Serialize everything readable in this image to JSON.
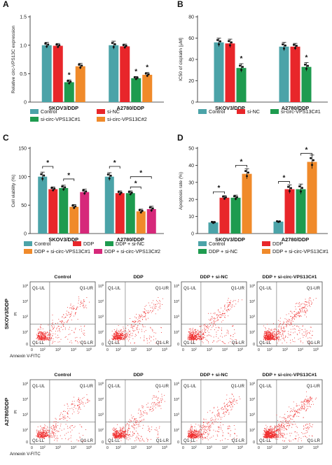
{
  "colors": {
    "control": "#4ba3a8",
    "sinc": "#e8262a",
    "si1": "#1e9b4f",
    "si2": "#f08a2a",
    "ddp": "#e8262a",
    "ddpsinc": "#1e9b4f",
    "ddpsi1": "#f08a2a",
    "ddpsi2": "#d6287a",
    "dot": "#ef2b2b"
  },
  "chart_data": [
    {
      "id": "A",
      "type": "bar",
      "panel_label": "A",
      "ylabel": "Relative circ-VPS13C expression",
      "ylim": [
        0,
        1.5
      ],
      "yticks": [
        0,
        0.5,
        1.0,
        1.5
      ],
      "ytick_labels": [
        "0",
        "0.5",
        "1.0",
        "1.5"
      ],
      "categories": [
        "SKOV3/DDP",
        "A2780/DDP"
      ],
      "series": [
        {
          "name": "Control",
          "color_key": "control",
          "values": [
            1.0,
            1.0
          ],
          "err": [
            0.05,
            0.07
          ]
        },
        {
          "name": "si-NC",
          "color_key": "sinc",
          "values": [
            0.99,
            0.98
          ],
          "err": [
            0.04,
            0.04
          ]
        },
        {
          "name": "si-circ-VPS13C#1",
          "color_key": "si1",
          "values": [
            0.35,
            0.42
          ],
          "err": [
            0.04,
            0.03
          ]
        },
        {
          "name": "si-circ-VPS13C#2",
          "color_key": "si2",
          "values": [
            0.63,
            0.48
          ],
          "err": [
            0.05,
            0.04
          ]
        }
      ],
      "stars": [
        {
          "category": 0,
          "series": 2,
          "text": "*"
        },
        {
          "category": 1,
          "series": 2,
          "text": "*"
        },
        {
          "category": 1,
          "series": 3,
          "text": "*"
        }
      ],
      "brackets": [],
      "legend": [
        {
          "label": "Control",
          "color_key": "control"
        },
        {
          "label": "si-NC",
          "color_key": "sinc"
        },
        {
          "label": "si-circ-VPS13C#1",
          "color_key": "si1"
        },
        {
          "label": "si-circ-VPS13C#2",
          "color_key": "si2"
        }
      ]
    },
    {
      "id": "B",
      "type": "bar",
      "panel_label": "B",
      "ylabel": "IC50 of cisplatin [μM]",
      "ylim": [
        0,
        80
      ],
      "yticks": [
        0,
        20,
        40,
        60,
        80
      ],
      "ytick_labels": [
        "0",
        "20",
        "40",
        "60",
        "80"
      ],
      "categories": [
        "SKOV3/DDP",
        "A2780/DDP"
      ],
      "series": [
        {
          "name": "Control",
          "color_key": "control",
          "values": [
            56,
            52
          ],
          "err": [
            4,
            4
          ]
        },
        {
          "name": "si-NC",
          "color_key": "sinc",
          "values": [
            55,
            52
          ],
          "err": [
            4,
            3
          ]
        },
        {
          "name": "si-circ-VPS13C#1",
          "color_key": "si1",
          "values": [
            32,
            33
          ],
          "err": [
            4,
            4
          ]
        }
      ],
      "stars": [
        {
          "category": 0,
          "series": 2,
          "text": "*"
        },
        {
          "category": 1,
          "series": 2,
          "text": "*"
        }
      ],
      "brackets": [],
      "legend": [
        {
          "label": "Control",
          "color_key": "control"
        },
        {
          "label": "si-NC",
          "color_key": "sinc"
        },
        {
          "label": "si-circ-VPS13C#1",
          "color_key": "si1"
        }
      ]
    },
    {
      "id": "C",
      "type": "bar",
      "panel_label": "C",
      "ylabel": "Cell viability (%)",
      "ylim": [
        0,
        150
      ],
      "yticks": [
        0,
        50,
        100,
        150
      ],
      "ytick_labels": [
        "0",
        "50",
        "100",
        "150"
      ],
      "categories": [
        "SKOV3/DDP",
        "A2780/DDP"
      ],
      "series": [
        {
          "name": "Control",
          "color_key": "control",
          "values": [
            100,
            100
          ],
          "err": [
            8,
            7
          ]
        },
        {
          "name": "DDP",
          "color_key": "ddp",
          "values": [
            78,
            71
          ],
          "err": [
            4,
            4
          ]
        },
        {
          "name": "DDP + si-NC",
          "color_key": "ddpsinc",
          "values": [
            80,
            71
          ],
          "err": [
            5,
            4
          ]
        },
        {
          "name": "DDP + si-circ-VPS13C#1",
          "color_key": "ddpsi1",
          "values": [
            47,
            39
          ],
          "err": [
            4,
            4
          ]
        },
        {
          "name": "DDP + si-circ-VPS13C#2",
          "color_key": "ddpsi2",
          "values": [
            73,
            43
          ],
          "err": [
            5,
            5
          ]
        }
      ],
      "stars": [],
      "brackets": [
        {
          "category": 0,
          "from": 0,
          "to": 1,
          "y": 118,
          "text": "*"
        },
        {
          "category": 0,
          "from": 2,
          "to": 3,
          "y": 96,
          "text": "*"
        },
        {
          "category": 1,
          "from": 0,
          "to": 1,
          "y": 118,
          "text": "*"
        },
        {
          "category": 1,
          "from": 2,
          "to": 3,
          "y": 82,
          "text": "*"
        },
        {
          "category": 1,
          "from": 2,
          "to": 4,
          "y": 100,
          "text": "*"
        }
      ],
      "legend": [
        {
          "label": "Control",
          "color_key": "control"
        },
        {
          "label": "DDP",
          "color_key": "ddp"
        },
        {
          "label": "DDP + si-NC",
          "color_key": "ddpsinc"
        },
        {
          "label": "DDP + si-circ-VPS13C#1",
          "color_key": "ddpsi1"
        },
        {
          "label": "DDP + si-circ-VPS13C#2",
          "color_key": "ddpsi2"
        }
      ]
    },
    {
      "id": "D",
      "type": "bar",
      "panel_label": "D",
      "ylabel": "Apoptosis rate (%)",
      "ylim": [
        0,
        50
      ],
      "yticks": [
        0,
        10,
        20,
        30,
        40,
        50
      ],
      "ytick_labels": [
        "0",
        "10",
        "20",
        "30",
        "40",
        "50"
      ],
      "categories": [
        "SKOV3/DDP",
        "A2780/DDP"
      ],
      "series": [
        {
          "name": "Control",
          "color_key": "control",
          "values": [
            6.5,
            7.0
          ],
          "err": [
            0.6,
            0.4
          ]
        },
        {
          "name": "DDP",
          "color_key": "ddp",
          "values": [
            21,
            26
          ],
          "err": [
            1.2,
            2.5
          ]
        },
        {
          "name": "DDP + si-NC",
          "color_key": "ddpsinc",
          "values": [
            21,
            26
          ],
          "err": [
            1.5,
            3.0
          ]
        },
        {
          "name": "DDP + si-circ-VPS13C#1",
          "color_key": "ddpsi1",
          "values": [
            35,
            42
          ],
          "err": [
            3,
            4
          ]
        }
      ],
      "stars": [],
      "brackets": [
        {
          "category": 0,
          "from": 0,
          "to": 1,
          "y": 24.5,
          "text": "*"
        },
        {
          "category": 0,
          "from": 2,
          "to": 3,
          "y": 40,
          "text": "*"
        },
        {
          "category": 1,
          "from": 0,
          "to": 1,
          "y": 30.5,
          "text": "*"
        },
        {
          "category": 1,
          "from": 2,
          "to": 3,
          "y": 47,
          "text": "*"
        }
      ],
      "legend": [
        {
          "label": "Control",
          "color_key": "control"
        },
        {
          "label": "DDP",
          "color_key": "ddp"
        },
        {
          "label": "DDP + si-NC",
          "color_key": "ddpsinc"
        },
        {
          "label": "DDP + si-circ-VPS13C#1",
          "color_key": "ddpsi1"
        }
      ]
    }
  ],
  "flow": {
    "column_titles": [
      "Control",
      "DDP",
      "DDP + si-NC",
      "DDP + si-circ-VPS13C#1"
    ],
    "rows": [
      {
        "label": "SKOV3/DDP",
        "cluster_density": [
          1.0,
          1.15,
          1.2,
          1.6
        ]
      },
      {
        "label": "A2780/DDP",
        "cluster_density": [
          1.0,
          1.25,
          1.3,
          1.8
        ]
      }
    ],
    "quadrant_labels": {
      "ul": "Q1-UL",
      "ur": "Q1-UR",
      "ll": "Q1-LL",
      "lr": "Q1-LR"
    },
    "y_axis_label": "PI",
    "x_axis_label": "Annexin V-FITC",
    "tick_exponents": [
      "2",
      "3",
      "4",
      "5"
    ],
    "tick_base": "10",
    "y_zero_label": "0",
    "x_zero_label": "0"
  }
}
